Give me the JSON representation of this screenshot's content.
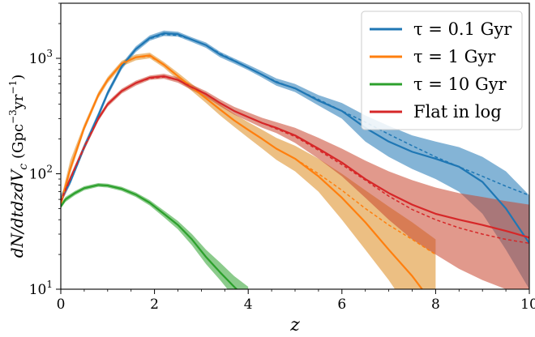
{
  "chart_data": {
    "type": "line",
    "title": "",
    "xlabel": "z",
    "ylabel": "dN/dtdzdV_c (Gpc^-3yr^-1)",
    "ylabel_parts": {
      "main": "dN/dtdzdV",
      "main_sub": "c",
      "unit_open": "(Gpc",
      "unit_sup1": "−3",
      "unit_mid": "yr",
      "unit_sup2": "−1",
      "unit_close": ")"
    },
    "xlim": [
      0,
      10
    ],
    "ylim": [
      10,
      3000
    ],
    "yscale": "log",
    "grid": false,
    "legend_position": "top-right",
    "x_ticks": [
      "0",
      "2",
      "4",
      "6",
      "8",
      "10"
    ],
    "y_ticks": [
      {
        "base": "10",
        "exp": "1",
        "value": 10
      },
      {
        "base": "10",
        "exp": "2",
        "value": 100
      },
      {
        "base": "10",
        "exp": "3",
        "value": 1000
      }
    ],
    "series": [
      {
        "name": "τ = 0.1 Gyr",
        "color": "#1f77b4",
        "band_color": "#1f77b4",
        "x": [
          0,
          0.2,
          0.5,
          0.8,
          1.0,
          1.3,
          1.6,
          1.9,
          2.2,
          2.5,
          2.8,
          3.1,
          3.4,
          3.7,
          4.0,
          4.3,
          4.6,
          5.0,
          5.5,
          6.0,
          6.5,
          7.0,
          7.5,
          8.0,
          8.5,
          9.0,
          9.5,
          10.0
        ],
        "median": [
          60,
          85,
          170,
          320,
          500,
          850,
          1200,
          1500,
          1650,
          1620,
          1450,
          1300,
          1080,
          950,
          830,
          720,
          620,
          550,
          430,
          350,
          250,
          190,
          155,
          135,
          115,
          85,
          50,
          25
        ],
        "lower": [
          55,
          80,
          160,
          300,
          470,
          800,
          1130,
          1420,
          1560,
          1540,
          1380,
          1230,
          1020,
          900,
          790,
          680,
          580,
          510,
          390,
          300,
          190,
          140,
          110,
          90,
          70,
          45,
          22,
          10
        ],
        "upper": [
          66,
          92,
          182,
          340,
          530,
          900,
          1270,
          1580,
          1740,
          1700,
          1520,
          1370,
          1140,
          1000,
          880,
          770,
          670,
          600,
          480,
          410,
          320,
          260,
          215,
          190,
          170,
          140,
          105,
          65
        ],
        "fit": [
          60,
          85,
          170,
          320,
          500,
          850,
          1200,
          1480,
          1610,
          1580,
          1450,
          1300,
          1100,
          960,
          830,
          720,
          630,
          545,
          440,
          350,
          280,
          220,
          175,
          140,
          115,
          95,
          78,
          65
        ]
      },
      {
        "name": "τ = 1 Gyr",
        "color": "#ff7f0e",
        "band_color": "#dd8a1e",
        "x": [
          0,
          0.2,
          0.5,
          0.8,
          1.0,
          1.3,
          1.6,
          1.9,
          2.2,
          2.5,
          2.8,
          3.1,
          3.4,
          3.7,
          4.0,
          4.3,
          4.6,
          5.0,
          5.5,
          6.0,
          6.5,
          7.0,
          7.5,
          8.0
        ],
        "median": [
          55,
          110,
          250,
          480,
          650,
          900,
          1020,
          1060,
          880,
          700,
          560,
          450,
          360,
          290,
          240,
          200,
          165,
          135,
          95,
          62,
          38,
          22,
          13,
          7
        ],
        "lower": [
          50,
          100,
          235,
          450,
          610,
          850,
          960,
          1000,
          830,
          650,
          520,
          410,
          320,
          255,
          205,
          165,
          132,
          105,
          70,
          40,
          22,
          12,
          6,
          3
        ],
        "upper": [
          60,
          130,
          270,
          510,
          690,
          950,
          1080,
          1120,
          930,
          750,
          600,
          490,
          400,
          330,
          280,
          240,
          205,
          175,
          135,
          100,
          72,
          52,
          38,
          27
        ],
        "fit": [
          55,
          110,
          250,
          480,
          650,
          900,
          1020,
          1040,
          880,
          700,
          560,
          450,
          360,
          290,
          240,
          200,
          165,
          135,
          100,
          72,
          50,
          36,
          27,
          20
        ]
      },
      {
        "name": "τ = 10 Gyr",
        "color": "#2ca02c",
        "band_color": "#2ca02c",
        "x": [
          0,
          0.1,
          0.3,
          0.5,
          0.8,
          1.0,
          1.3,
          1.6,
          1.9,
          2.2,
          2.5,
          2.8,
          3.1,
          3.4,
          3.7,
          4.0
        ],
        "median": [
          52,
          60,
          68,
          75,
          80,
          79,
          74,
          66,
          56,
          45,
          36,
          27,
          19,
          14,
          10.5,
          8
        ],
        "lower": [
          50,
          57,
          65,
          72,
          77,
          76,
          71,
          63,
          53,
          42,
          33,
          24,
          16.5,
          12,
          8.5,
          6
        ],
        "upper": [
          55,
          63,
          71,
          78,
          83,
          82,
          77,
          69,
          59,
          48,
          39,
          30,
          22,
          17,
          13,
          10.5
        ],
        "fit": [
          52,
          60,
          68,
          75,
          80,
          79,
          74,
          66,
          56,
          45,
          36,
          27,
          19,
          14,
          10.5,
          8
        ]
      },
      {
        "name": "Flat in log",
        "color": "#d62728",
        "band_color": "#c8452e",
        "x": [
          0,
          0.2,
          0.5,
          0.8,
          1.0,
          1.3,
          1.6,
          1.9,
          2.2,
          2.5,
          2.8,
          3.1,
          3.4,
          3.7,
          4.0,
          4.3,
          4.6,
          5.0,
          5.5,
          6.0,
          6.5,
          7.0,
          7.5,
          8.0,
          8.5,
          9.0,
          9.5,
          10.0
        ],
        "median": [
          58,
          90,
          170,
          300,
          400,
          520,
          610,
          680,
          700,
          650,
          560,
          490,
          410,
          350,
          310,
          275,
          250,
          215,
          165,
          125,
          90,
          68,
          54,
          45,
          40,
          36,
          32,
          28
        ],
        "lower": [
          54,
          84,
          160,
          285,
          380,
          495,
          580,
          650,
          665,
          615,
          530,
          460,
          385,
          325,
          285,
          250,
          225,
          185,
          135,
          95,
          62,
          40,
          27,
          20,
          15,
          12,
          10,
          8
        ],
        "upper": [
          62,
          96,
          180,
          315,
          420,
          545,
          640,
          710,
          735,
          685,
          590,
          520,
          440,
          380,
          340,
          305,
          280,
          250,
          205,
          165,
          130,
          105,
          88,
          76,
          68,
          63,
          58,
          54
        ],
        "fit": [
          58,
          90,
          170,
          300,
          400,
          520,
          610,
          670,
          690,
          650,
          560,
          490,
          410,
          350,
          310,
          275,
          245,
          210,
          160,
          120,
          88,
          64,
          49,
          40,
          34,
          30,
          27,
          25
        ]
      }
    ]
  }
}
